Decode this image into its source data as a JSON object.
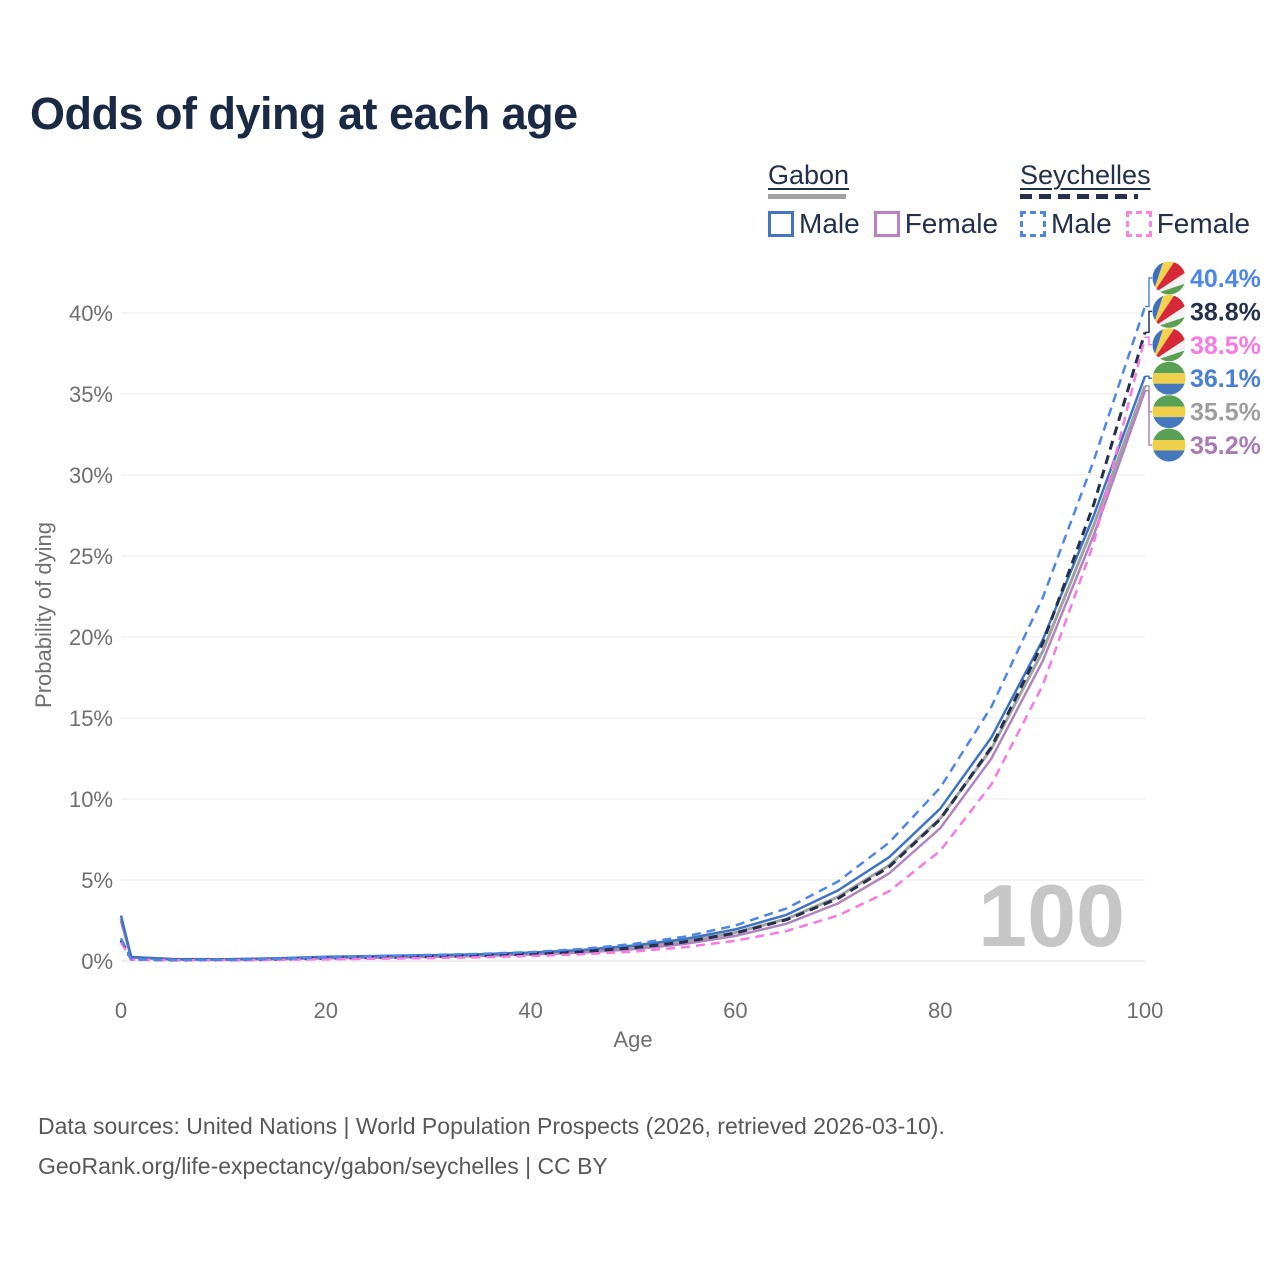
{
  "title": "Odds of dying at each age",
  "watermark": "100",
  "legend": {
    "gabon": {
      "label": "Gabon",
      "male": "Male",
      "female": "Female"
    },
    "seychelles": {
      "label": "Seychelles",
      "male": "Male",
      "female": "Female"
    }
  },
  "axes": {
    "x_label": "Age",
    "y_label": "Probability of dying"
  },
  "footer": {
    "line1": "Data sources: United Nations | World Population Prospects (2026, retrieved 2026-03-10).",
    "line2": "GeoRank.org/life-expectancy/gabon/seychelles | CC BY"
  },
  "flag_colors": {
    "gabon": {
      "green": "#58a054",
      "yellow": "#eecf4b",
      "blue": "#4678bd"
    },
    "seychelles": {
      "blue": "#3d6fc2",
      "yellow": "#f5d24b",
      "red": "#d5293a",
      "white": "#f2f2f2",
      "green": "#5aa050"
    }
  },
  "chart_data": {
    "type": "line",
    "title": "Odds of dying at each age",
    "xlabel": "Age",
    "ylabel": "Probability of dying",
    "xlim": [
      0,
      100
    ],
    "ylim_percent": [
      0,
      42
    ],
    "x_ticks": [
      0,
      20,
      40,
      60,
      80,
      100
    ],
    "y_ticks_percent": [
      0,
      5,
      10,
      15,
      20,
      25,
      30,
      35,
      40
    ],
    "y_tick_suffix": "%",
    "grid": "horizontal",
    "legend_position": "top-right",
    "ages": [
      0,
      1,
      5,
      10,
      15,
      20,
      25,
      30,
      35,
      40,
      45,
      50,
      55,
      60,
      65,
      70,
      75,
      80,
      85,
      90,
      95,
      100
    ],
    "series": [
      {
        "id": "gabon_both",
        "name": "Gabon — Both sexes",
        "country": "Gabon",
        "sex": "Both",
        "style": "solid",
        "color": "#a2a2a2",
        "width": 3,
        "flag": "gabon",
        "end_value": 35.5,
        "end_label": "35.5%",
        "label_color": "#9e9e9e",
        "values": [
          2.6,
          0.23,
          0.11,
          0.09,
          0.14,
          0.21,
          0.26,
          0.31,
          0.37,
          0.46,
          0.6,
          0.84,
          1.2,
          1.75,
          2.6,
          3.95,
          5.9,
          8.8,
          13.1,
          19.1,
          26.9,
          35.5
        ]
      },
      {
        "id": "gabon_female",
        "name": "Gabon — Female",
        "country": "Gabon",
        "sex": "Female",
        "style": "solid",
        "color": "#b184bd",
        "width": 2.5,
        "flag": "gabon",
        "end_value": 35.2,
        "end_label": "35.2%",
        "label_color": "#a87bb5",
        "values": [
          2.45,
          0.21,
          0.1,
          0.08,
          0.11,
          0.16,
          0.2,
          0.25,
          0.31,
          0.4,
          0.52,
          0.72,
          1.05,
          1.55,
          2.3,
          3.55,
          5.4,
          8.2,
          12.5,
          18.5,
          26.3,
          35.2
        ]
      },
      {
        "id": "gabon_male",
        "name": "Gabon — Male",
        "country": "Gabon",
        "sex": "Male",
        "style": "solid",
        "color": "#3e74c4",
        "width": 2.5,
        "flag": "gabon",
        "end_value": 36.1,
        "end_label": "36.1%",
        "label_color": "#4a80d4",
        "values": [
          2.8,
          0.25,
          0.12,
          0.1,
          0.16,
          0.26,
          0.31,
          0.36,
          0.42,
          0.52,
          0.68,
          0.95,
          1.35,
          1.95,
          2.85,
          4.35,
          6.4,
          9.4,
          13.8,
          19.8,
          27.5,
          36.1
        ]
      },
      {
        "id": "seychelles_both",
        "name": "Seychelles — Both sexes",
        "country": "Seychelles",
        "sex": "Both",
        "style": "dashed",
        "color": "#25304d",
        "width": 3,
        "dash": "9 6",
        "flag": "seychelles",
        "end_value": 38.8,
        "end_label": "38.8%",
        "label_color": "#25304d",
        "values": [
          1.28,
          0.11,
          0.055,
          0.06,
          0.1,
          0.17,
          0.22,
          0.27,
          0.33,
          0.43,
          0.58,
          0.81,
          1.17,
          1.72,
          2.55,
          3.85,
          5.8,
          8.75,
          13.2,
          19.6,
          28.2,
          38.8
        ]
      },
      {
        "id": "seychelles_female",
        "name": "Seychelles — Female",
        "country": "Seychelles",
        "sex": "Female",
        "style": "dashed",
        "color": "#f779e2",
        "width": 2.5,
        "dash": "9 6",
        "flag": "seychelles",
        "end_value": 38.5,
        "end_label": "38.5%",
        "label_color": "#f779e2",
        "values": [
          1.15,
          0.1,
          0.05,
          0.05,
          0.08,
          0.11,
          0.14,
          0.18,
          0.23,
          0.31,
          0.42,
          0.58,
          0.85,
          1.25,
          1.85,
          2.8,
          4.3,
          6.8,
          10.9,
          17.0,
          25.8,
          38.5
        ]
      },
      {
        "id": "seychelles_male",
        "name": "Seychelles — Male",
        "country": "Seychelles",
        "sex": "Male",
        "style": "dashed",
        "color": "#4e86e8",
        "width": 2.5,
        "dash": "9 6",
        "flag": "seychelles",
        "end_value": 40.4,
        "end_label": "40.4%",
        "label_color": "#4e86e8",
        "values": [
          1.4,
          0.12,
          0.06,
          0.07,
          0.13,
          0.23,
          0.31,
          0.37,
          0.44,
          0.55,
          0.74,
          1.05,
          1.5,
          2.2,
          3.25,
          4.9,
          7.3,
          10.7,
          15.7,
          22.4,
          30.9,
          40.4
        ]
      }
    ]
  }
}
